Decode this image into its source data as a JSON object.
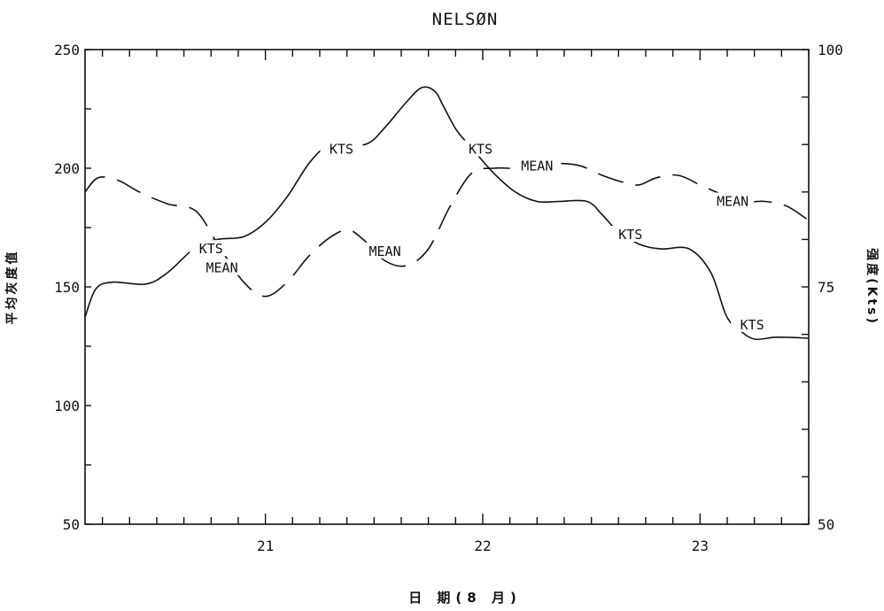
{
  "chart_data": {
    "type": "line",
    "title": "NELSØN",
    "xlabel": "日 期(8 月)",
    "ylabel_left": "平均灰度值",
    "ylabel_right": "强度(Kts)",
    "xlim": [
      20.17,
      23.5
    ],
    "x_ticks": [
      21,
      22,
      23
    ],
    "x_tick_labels": [
      "21",
      "22",
      "23"
    ],
    "ylim_left": [
      50,
      250
    ],
    "y_ticks_left": [
      50,
      100,
      150,
      200,
      250
    ],
    "y_tick_labels_left": [
      "50",
      "100",
      "150",
      "200",
      "250"
    ],
    "ylim_right": [
      50,
      100
    ],
    "y_ticks_right": [
      50,
      75,
      100
    ],
    "y_tick_labels_right": [
      "50",
      "75",
      "100"
    ],
    "grid": false,
    "series": [
      {
        "name": "KTS",
        "axis": "right",
        "style": "solid",
        "labels": [
          {
            "text": "KTS",
            "x": 20.75,
            "y": 79
          },
          {
            "text": "KTS",
            "x": 21.35,
            "y": 89.5
          },
          {
            "text": "KTS",
            "x": 21.99,
            "y": 89.5
          },
          {
            "text": "KTS",
            "x": 22.68,
            "y": 80.5
          },
          {
            "text": "KTS",
            "x": 23.24,
            "y": 71
          }
        ],
        "x": [
          20.17,
          20.22,
          20.3,
          20.45,
          20.55,
          20.68,
          20.78,
          20.9,
          21.0,
          21.1,
          21.2,
          21.28,
          21.35,
          21.47,
          21.55,
          21.65,
          21.72,
          21.78,
          21.82,
          21.88,
          21.95,
          22.05,
          22.15,
          22.25,
          22.35,
          22.48,
          22.55,
          22.62,
          22.72,
          22.82,
          22.95,
          23.05,
          23.12,
          23.18,
          23.25,
          23.35,
          23.5
        ],
        "y": [
          71.8,
          74.8,
          75.5,
          75.3,
          76.5,
          79.2,
          80.0,
          80.3,
          81.8,
          84.5,
          88.0,
          89.8,
          89.8,
          90.1,
          91.8,
          94.5,
          96.0,
          95.6,
          94.0,
          91.5,
          89.6,
          87.0,
          85.0,
          84.0,
          84.0,
          84.0,
          82.6,
          80.9,
          79.5,
          79.0,
          79.0,
          76.5,
          72.0,
          70.5,
          69.5,
          69.7,
          69.6
        ]
      },
      {
        "name": "MEAN",
        "axis": "left",
        "style": "dashed",
        "labels": [
          {
            "text": "MEAN",
            "x": 20.8,
            "y": 158
          },
          {
            "text": "MEAN",
            "x": 21.55,
            "y": 165
          },
          {
            "text": "MEAN",
            "x": 22.25,
            "y": 201
          },
          {
            "text": "MEAN",
            "x": 23.15,
            "y": 186
          }
        ],
        "x": [
          20.17,
          20.23,
          20.32,
          20.42,
          20.55,
          20.68,
          20.78,
          20.9,
          21.0,
          21.1,
          21.2,
          21.3,
          21.38,
          21.45,
          21.55,
          21.65,
          21.75,
          21.85,
          21.95,
          22.05,
          22.15,
          22.25,
          22.35,
          22.45,
          22.55,
          22.65,
          22.72,
          22.8,
          22.9,
          23.0,
          23.1,
          23.2,
          23.3,
          23.4,
          23.5
        ],
        "y": [
          190,
          196,
          195,
          190,
          185,
          182,
          168,
          152,
          146,
          152,
          163,
          171,
          174,
          170,
          161,
          159,
          166,
          184,
          198,
          200,
          200,
          201,
          202,
          201,
          197,
          194,
          193,
          196,
          197,
          193,
          189,
          186,
          186,
          184,
          178
        ]
      }
    ]
  }
}
